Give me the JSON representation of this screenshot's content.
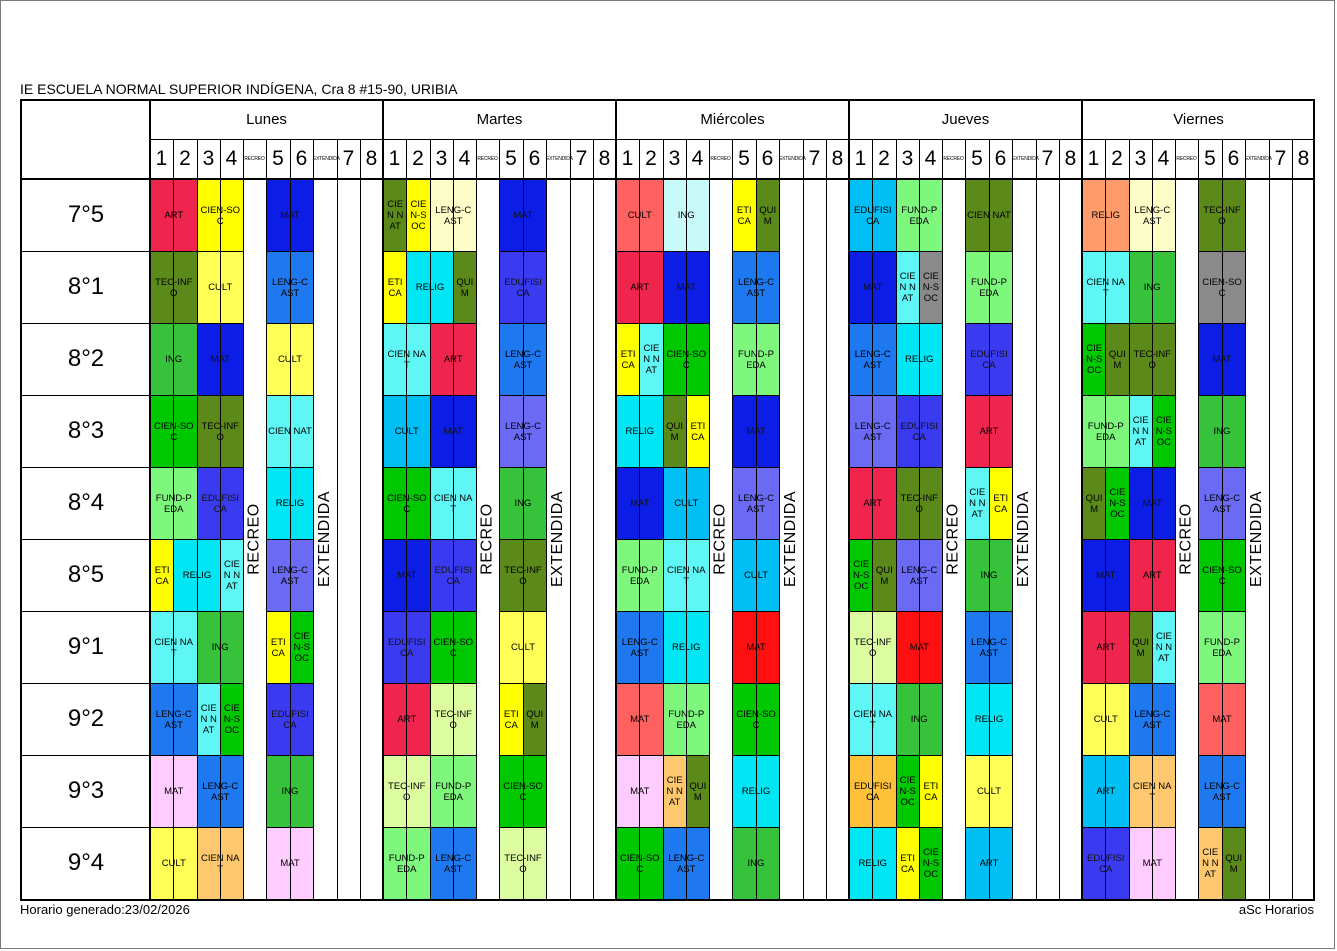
{
  "document": {
    "school": "IE ESCUELA NORMAL SUPERIOR INDÍGENA, Cra 8 #15-90, URIBIA",
    "footer_left": "Horario generado:23/02/2026",
    "footer_right": "aSc Horarios"
  },
  "days": [
    "Lunes",
    "Martes",
    "Miércoles",
    "Jueves",
    "Viernes"
  ],
  "periods": [
    {
      "label": "1",
      "small": false
    },
    {
      "label": "2",
      "small": false
    },
    {
      "label": "3",
      "small": false
    },
    {
      "label": "4",
      "small": false
    },
    {
      "label": "RECREO",
      "small": true
    },
    {
      "label": "5",
      "small": false
    },
    {
      "label": "6",
      "small": false
    },
    {
      "label": "EXTENDIDA",
      "small": true
    },
    {
      "label": "7",
      "small": false
    },
    {
      "label": "8",
      "small": false
    }
  ],
  "break_label": "RECREO",
  "extended_label": "EXTENDIDA",
  "classes": [
    "7°5",
    "8°1",
    "8°2",
    "8°3",
    "8°4",
    "8°5",
    "9°1",
    "9°2",
    "9°3",
    "9°4"
  ],
  "colors": {
    "ART": "#f0254d",
    "CIEN-SOC": "#ffff00",
    "MAT": "#0c1ee6",
    "TEC-INF": "#5b8a1a",
    "CULT": "#ffff55",
    "LENG-CAST": "#1e78f0",
    "ING": "#36c23a",
    "CIENNAT": "#5ff6f6",
    "FUND-PEDA": "#7df87d",
    "EDUFISICA": "#3a3af0",
    "RELIG": "#00e6f5",
    "ETICA": "#ffff00",
    "CIEN-SOC_b": "#00c800",
    "LENG-CAST_b": "#6a6af5",
    "ART_b": "#ff6060"
  },
  "schedule": [
    {
      "class": "7°5",
      "cells": [
        [
          0,
          0,
          1,
          1,
          "ART",
          "#f0254d"
        ],
        [
          0,
          1,
          1,
          1,
          "CIEN-SOC",
          "#ffff00"
        ],
        [
          0,
          3,
          2,
          1,
          "MAT",
          "#0c1ee6"
        ],
        [
          1,
          0,
          1,
          1,
          "CIENNAT",
          "#5b8a1a"
        ],
        [
          1,
          0.333,
          1,
          1,
          "CIEN-SOC",
          "#ffff00"
        ],
        [
          1,
          1,
          1,
          1,
          "LENG-CAST",
          "#fdfdc8"
        ],
        [
          1,
          3,
          2,
          1,
          "MAT",
          "#0c1ee6"
        ],
        [
          2,
          0,
          1,
          1,
          "CULT",
          "#ff6060"
        ],
        [
          2,
          1,
          1,
          1,
          "ING",
          "#c8fafa"
        ],
        [
          2,
          3,
          1,
          1,
          "ETICA",
          "#ffff00"
        ],
        [
          2,
          3.5,
          1,
          1,
          "QUIM",
          "#5b8a1a"
        ],
        [
          3,
          0,
          1,
          1,
          "EDUFISICA",
          "#00bff5"
        ],
        [
          3,
          1,
          1,
          1,
          "FUND-PEDA",
          "#7df87d"
        ],
        [
          3,
          3,
          2,
          1,
          "CIENNAT",
          "#5b8a1a"
        ],
        [
          4,
          0,
          1,
          1,
          "RELIG",
          "#ff9a6a"
        ],
        [
          4,
          1,
          1,
          1,
          "LENG-CAST",
          "#fdfdc8"
        ],
        [
          4,
          3,
          2,
          1,
          "TEC-INF",
          "#5b8a1a"
        ]
      ]
    }
  ],
  "rows": [
    [
      [
        "ART",
        "#f0254d",
        0,
        1,
        1
      ],
      [
        "CIEN-SOC",
        "#ffff00",
        1,
        2,
        1
      ],
      [
        "MAT",
        "#0c1ee6",
        5,
        6,
        1
      ],
      [
        "CIEN NAT",
        "#5b8a1a",
        10,
        10.5,
        1
      ],
      [
        "CIE N-S OC",
        "#ffff00",
        10.5,
        11,
        1
      ],
      [
        "LENG-C AST",
        "#fdfdc8",
        11,
        12,
        1
      ],
      [
        "MAT",
        "#0c1ee6",
        15,
        16,
        1
      ],
      [
        "CULT",
        "#ff6060",
        20,
        21,
        1
      ],
      [
        "ING",
        "#c8fafa",
        21,
        22,
        1
      ],
      [
        "ETI CA",
        "#ffff00",
        25,
        25.5,
        1
      ],
      [
        "QUI M",
        "#5b8a1a",
        25.5,
        26,
        1
      ],
      [
        "EDUFISI CA",
        "#00bff5",
        30,
        31,
        1
      ],
      [
        "FUND-P EDA",
        "#7df87d",
        31,
        32,
        1
      ],
      [
        "CIEN NAT",
        "#5b8a1a",
        35,
        36,
        1
      ],
      [
        "RELIG",
        "#ff9a6a",
        40,
        41,
        1
      ],
      [
        "LENG-C AST",
        "#fdfdc8",
        41,
        42,
        1
      ],
      [
        "TEC-INF O",
        "#5b8a1a",
        45,
        46,
        1
      ]
    ],
    [
      [
        "TEC-INF O",
        "#5b8a1a",
        0,
        1,
        1
      ],
      [
        "CULT",
        "#ffff55",
        1,
        2,
        1
      ],
      [
        "LENG-C AST",
        "#1e78f0",
        5,
        6,
        1
      ],
      [
        "ETI CA",
        "#ffff00",
        10,
        10.5,
        1
      ],
      [
        "RELIG",
        "#00e6f5",
        10.5,
        11.5,
        1
      ],
      [
        "QUI M",
        "#5b8a1a",
        11.5,
        12,
        1
      ],
      [
        "EDUFISI CA",
        "#3a3af0",
        15,
        16,
        1
      ],
      [
        "ART",
        "#f0254d",
        20,
        21,
        1
      ],
      [
        "MAT",
        "#0c1ee6",
        21,
        22,
        1
      ],
      [
        "LENG-C AST",
        "#1e78f0",
        25,
        26,
        1
      ],
      [
        "MAT",
        "#0c1ee6",
        30,
        31,
        1
      ],
      [
        "CIE N NAT",
        "#5ff6f6",
        31,
        31.5,
        1
      ],
      [
        "CIE N-S OC",
        "#8a8a8a",
        31.5,
        32,
        1
      ],
      [
        "FUND-P EDA",
        "#7df87d",
        35,
        36,
        1
      ],
      [
        "CIEN NAT",
        "#5ff6f6",
        40,
        41,
        1
      ],
      [
        "ING",
        "#36c23a",
        41,
        42,
        1
      ],
      [
        "CIEN-SO C",
        "#8a8a8a",
        45,
        46,
        1
      ]
    ],
    [
      [
        "ING",
        "#36c23a",
        0,
        1,
        1
      ],
      [
        "MAT",
        "#0c1ee6",
        1,
        2,
        1
      ],
      [
        "CULT",
        "#ffff55",
        5,
        6,
        1
      ],
      [
        "CIEN NAT",
        "#5ff6f6",
        10,
        11,
        1
      ],
      [
        "ART",
        "#f0254d",
        11,
        12,
        1
      ],
      [
        "LENG-C AST",
        "#1e78f0",
        15,
        16,
        1
      ],
      [
        "ETI CA",
        "#ffff00",
        20,
        20.5,
        1
      ],
      [
        "CIE N NAT",
        "#5ff6f6",
        20.5,
        21,
        1
      ],
      [
        "CIEN-SO C",
        "#00c800",
        21,
        22,
        1
      ],
      [
        "FUND-P EDA",
        "#7df87d",
        25,
        26,
        1
      ],
      [
        "LENG-C AST",
        "#1e78f0",
        30,
        31,
        1
      ],
      [
        "RELIG",
        "#00e6f5",
        31,
        32,
        1
      ],
      [
        "EDUFISI CA",
        "#3a3af0",
        35,
        36,
        1
      ],
      [
        "CIE N-S OC",
        "#00c800",
        40,
        40.5,
        1
      ],
      [
        "QUI M",
        "#5b8a1a",
        40.5,
        41,
        1
      ],
      [
        "TEC-INF O",
        "#5b8a1a",
        41,
        42,
        1
      ],
      [
        "MAT",
        "#0c1ee6",
        45,
        46,
        1
      ]
    ],
    [
      [
        "CIEN-SO C",
        "#00c800",
        0,
        1,
        1
      ],
      [
        "TEC-INF O",
        "#5b8a1a",
        1,
        2,
        1
      ],
      [
        "CIEN NAT",
        "#5ff6f6",
        5,
        6,
        1
      ],
      [
        "CULT",
        "#00bff5",
        10,
        11,
        1
      ],
      [
        "MAT",
        "#0c1ee6",
        11,
        12,
        1
      ],
      [
        "LENG-C AST",
        "#6a6af5",
        15,
        16,
        1
      ],
      [
        "RELIG",
        "#00e6f5",
        20,
        21,
        1
      ],
      [
        "QUI M",
        "#5b8a1a",
        21,
        21.5,
        1
      ],
      [
        "ETI CA",
        "#ffff00",
        21.5,
        22,
        1
      ],
      [
        "MAT",
        "#0c1ee6",
        25,
        26,
        1
      ],
      [
        "LENG-C AST",
        "#6a6af5",
        30,
        31,
        1
      ],
      [
        "EDUFISI CA",
        "#3a3af0",
        31,
        32,
        1
      ],
      [
        "ART",
        "#f0254d",
        35,
        36,
        1
      ],
      [
        "FUND-P EDA",
        "#7df87d",
        40,
        41,
        1
      ],
      [
        "CIE N NAT",
        "#5ff6f6",
        41,
        41.5,
        1
      ],
      [
        "CIE N-S OC",
        "#00c800",
        41.5,
        42,
        1
      ],
      [
        "ING",
        "#36c23a",
        45,
        46,
        1
      ]
    ],
    [
      [
        "FUND-P EDA",
        "#7df87d",
        0,
        1,
        1
      ],
      [
        "EDUFISI CA",
        "#3a3af0",
        1,
        2,
        1
      ],
      [
        "RELIG",
        "#00e6f5",
        5,
        6,
        1
      ],
      [
        "CIEN-SO C",
        "#00c800",
        10,
        11,
        1
      ],
      [
        "CIEN NAT",
        "#5ff6f6",
        11,
        12,
        1
      ],
      [
        "ING",
        "#36c23a",
        15,
        16,
        1
      ],
      [
        "MAT",
        "#0c1ee6",
        20,
        21,
        1
      ],
      [
        "CULT",
        "#00bff5",
        21,
        22,
        1
      ],
      [
        "LENG-C AST",
        "#6a6af5",
        25,
        26,
        1
      ],
      [
        "ART",
        "#f0254d",
        30,
        31,
        1
      ],
      [
        "TEC-INF O",
        "#5b8a1a",
        31,
        32,
        1
      ],
      [
        "CIE N NAT",
        "#5ff6f6",
        35,
        35.5,
        1
      ],
      [
        "ETI CA",
        "#ffff00",
        35.5,
        36,
        1
      ],
      [
        "QUI M",
        "#5b8a1a",
        40,
        40.5,
        1
      ],
      [
        "CIE N-S OC",
        "#00c800",
        40.5,
        41,
        1
      ],
      [
        "MAT",
        "#0c1ee6",
        41,
        42,
        1
      ],
      [
        "LENG-C AST",
        "#6a6af5",
        45,
        46,
        1
      ]
    ],
    [
      [
        "ETI CA",
        "#ffff00",
        0,
        0.5,
        1
      ],
      [
        "RELIG",
        "#00e6f5",
        0.5,
        1.5,
        1
      ],
      [
        "CIE N NAT",
        "#5ff6f6",
        1.5,
        2,
        1
      ],
      [
        "LENG-C AST",
        "#6a6af5",
        5,
        6,
        1
      ],
      [
        "MAT",
        "#0c1ee6",
        10,
        11,
        1
      ],
      [
        "EDUFISI CA",
        "#3a3af0",
        11,
        12,
        1
      ],
      [
        "TEC-INF O",
        "#5b8a1a",
        15,
        16,
        1
      ],
      [
        "FUND-P EDA",
        "#7df87d",
        20,
        21,
        1
      ],
      [
        "CIEN NAT",
        "#5ff6f6",
        21,
        22,
        1
      ],
      [
        "CULT",
        "#00bff5",
        25,
        26,
        1
      ],
      [
        "CIE N-S OC",
        "#00c800",
        30,
        30.5,
        1
      ],
      [
        "QUI M",
        "#5b8a1a",
        30.5,
        31,
        1
      ],
      [
        "LENG-C AST",
        "#6a6af5",
        31,
        32,
        1
      ],
      [
        "ING",
        "#36c23a",
        35,
        36,
        1
      ],
      [
        "MAT",
        "#0c1ee6",
        40,
        41,
        1
      ],
      [
        "ART",
        "#f0254d",
        41,
        42,
        1
      ],
      [
        "CIEN-SO C",
        "#00c800",
        45,
        46,
        1
      ]
    ],
    [
      [
        "CIEN NAT",
        "#5ff6f6",
        0,
        1,
        1
      ],
      [
        "ING",
        "#36c23a",
        1,
        2,
        1
      ],
      [
        "ETI CA",
        "#ffff00",
        5,
        5.5,
        1
      ],
      [
        "CIE N-S OC",
        "#00c800",
        5.5,
        6,
        1
      ],
      [
        "EDUFISI CA",
        "#3a3af0",
        10,
        11,
        1
      ],
      [
        "CIEN-SO C",
        "#00c800",
        11,
        12,
        1
      ],
      [
        "CULT",
        "#ffff55",
        15,
        16,
        1
      ],
      [
        "LENG-C AST",
        "#1e78f0",
        20,
        21,
        1
      ],
      [
        "RELIG",
        "#00e6f5",
        21,
        22,
        1
      ],
      [
        "MAT",
        "#ff1010",
        25,
        26,
        1
      ],
      [
        "TEC-INF O",
        "#dcfca0",
        30,
        31,
        1
      ],
      [
        "MAT",
        "#ff1010",
        31,
        32,
        1
      ],
      [
        "LENG-C AST",
        "#1e78f0",
        35,
        36,
        1
      ],
      [
        "ART",
        "#f0254d",
        40,
        41,
        1
      ],
      [
        "QUI M",
        "#5b8a1a",
        41,
        41.5,
        1
      ],
      [
        "CIE N NAT",
        "#5ff6f6",
        41.5,
        42,
        1
      ],
      [
        "FUND-P EDA",
        "#7df87d",
        45,
        46,
        1
      ]
    ],
    [
      [
        "LENG-C AST",
        "#1e78f0",
        0,
        1,
        1
      ],
      [
        "CIE N NAT",
        "#5ff6f6",
        1,
        1.5,
        1
      ],
      [
        "CIE N-S OC",
        "#00c800",
        1.5,
        2,
        1
      ],
      [
        "EDUFISI CA",
        "#3a3af0",
        5,
        6,
        1
      ],
      [
        "ART",
        "#f0254d",
        10,
        11,
        1
      ],
      [
        "TEC-INF O",
        "#dcfca0",
        11,
        12,
        1
      ],
      [
        "ETI CA",
        "#ffff00",
        15,
        15.5,
        1
      ],
      [
        "QUI M",
        "#5b8a1a",
        15.5,
        16,
        1
      ],
      [
        "MAT",
        "#ff6060",
        20,
        21,
        1
      ],
      [
        "FUND-P EDA",
        "#7df87d",
        21,
        22,
        1
      ],
      [
        "CIEN-SO C",
        "#00c800",
        25,
        26,
        1
      ],
      [
        "CIEN NAT",
        "#5ff6f6",
        30,
        31,
        1
      ],
      [
        "ING",
        "#36c23a",
        31,
        32,
        1
      ],
      [
        "RELIG",
        "#00e6f5",
        35,
        36,
        1
      ],
      [
        "CULT",
        "#ffff55",
        40,
        41,
        1
      ],
      [
        "LENG-C AST",
        "#1e78f0",
        41,
        42,
        1
      ],
      [
        "MAT",
        "#ff6060",
        45,
        46,
        1
      ]
    ],
    [
      [
        "MAT",
        "#ffccff",
        0,
        1,
        1
      ],
      [
        "LENG-C AST",
        "#1e78f0",
        1,
        2,
        1
      ],
      [
        "ING",
        "#36c23a",
        5,
        6,
        1
      ],
      [
        "TEC-INF O",
        "#dcfca0",
        10,
        11,
        1
      ],
      [
        "FUND-P EDA",
        "#7df87d",
        11,
        12,
        1
      ],
      [
        "CIEN-SO C",
        "#00c800",
        15,
        16,
        1
      ],
      [
        "MAT",
        "#ffccff",
        20,
        21,
        1
      ],
      [
        "CIE N NAT",
        "#ffc86e",
        21,
        21.5,
        1
      ],
      [
        "QUI M",
        "#5b8a1a",
        21.5,
        22,
        1
      ],
      [
        "RELIG",
        "#00e6f5",
        25,
        26,
        1
      ],
      [
        "EDUFISI CA",
        "#ffc03a",
        30,
        31,
        1
      ],
      [
        "CIE N-S OC",
        "#00c800",
        31,
        31.5,
        1
      ],
      [
        "ETI CA",
        "#ffff00",
        31.5,
        32,
        1
      ],
      [
        "CULT",
        "#ffff55",
        35,
        36,
        1
      ],
      [
        "ART",
        "#00bff5",
        40,
        41,
        1
      ],
      [
        "CIEN NAT",
        "#ffc86e",
        41,
        42,
        1
      ],
      [
        "LENG-C AST",
        "#1e78f0",
        45,
        46,
        1
      ]
    ],
    [
      [
        "CULT",
        "#ffff55",
        0,
        1,
        1
      ],
      [
        "CIEN NAT",
        "#ffc86e",
        1,
        2,
        1
      ],
      [
        "MAT",
        "#ffccff",
        5,
        6,
        1
      ],
      [
        "FUND-P EDA",
        "#7df87d",
        10,
        11,
        1
      ],
      [
        "LENG-C AST",
        "#1e78f0",
        11,
        12,
        1
      ],
      [
        "TEC-INF O",
        "#dcfca0",
        15,
        16,
        1
      ],
      [
        "CIEN-SO C",
        "#00c800",
        20,
        21,
        1
      ],
      [
        "LENG-C AST",
        "#1e78f0",
        21,
        22,
        1
      ],
      [
        "ING",
        "#36c23a",
        25,
        26,
        1
      ],
      [
        "RELIG",
        "#00e6f5",
        30,
        31,
        1
      ],
      [
        "ETI CA",
        "#ffff00",
        31,
        31.5,
        1
      ],
      [
        "CIE N-S OC",
        "#00c800",
        31.5,
        32,
        1
      ],
      [
        "ART",
        "#00bff5",
        35,
        36,
        1
      ],
      [
        "EDUFISI CA",
        "#3a3af0",
        40,
        41,
        1
      ],
      [
        "MAT",
        "#ffccff",
        41,
        42,
        1
      ],
      [
        "CIE N NAT",
        "#ffc86e",
        45,
        45.5,
        1
      ],
      [
        "QUI M",
        "#5b8a1a",
        45.5,
        46,
        1
      ]
    ]
  ]
}
